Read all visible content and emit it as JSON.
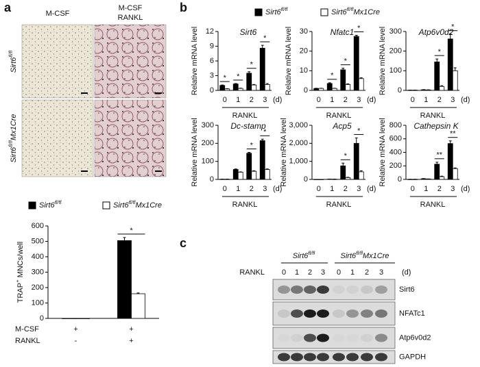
{
  "panel_labels": [
    "a",
    "b",
    "c"
  ],
  "micrographs": {
    "columns": [
      [
        "M-CSF"
      ],
      [
        "M-CSF",
        "RANKL"
      ]
    ],
    "rows": [
      "Sirt6fl/fl",
      "Sirt6fl/flMx1Cre"
    ]
  },
  "chart_data": [
    {
      "type": "bar",
      "y_label": "TRAP+ MNCs/well",
      "categories": [
        null,
        null
      ],
      "conditions": [
        {
          "name": "M-CSF",
          "values": [
            "+",
            "+"
          ]
        },
        {
          "name": "RANKL",
          "values": [
            "-",
            "+"
          ]
        }
      ],
      "series": [
        {
          "name": "Sirt6fl/fl",
          "color": "#000000",
          "values": [
            0,
            505
          ],
          "errors": [
            0,
            20
          ]
        },
        {
          "name": "Sirt6fl/flMx1Cre",
          "color": "#ffffff",
          "values": [
            0,
            160
          ],
          "errors": [
            0,
            5
          ]
        }
      ],
      "ylim": [
        0,
        600
      ],
      "yticks": [
        0,
        100,
        200,
        300,
        400,
        500,
        600
      ],
      "annotations": [
        {
          "text": "*"
        }
      ]
    },
    {
      "type": "bar",
      "title": "Sirt6",
      "y_label": "Relative mRNA level",
      "x_label": "RANKL",
      "x_unit": "(d)",
      "categories": [
        "0",
        "1",
        "2",
        "3"
      ],
      "series": [
        {
          "name": "Sirt6fl/fl",
          "color": "#000000",
          "values": [
            1,
            1.3,
            3.5,
            8.6
          ],
          "errors": [
            0.1,
            0.1,
            0.3,
            0.6
          ]
        },
        {
          "name": "Sirt6fl/flMx1Cre",
          "color": "#ffffff",
          "values": [
            0.3,
            0.4,
            1.1,
            1.2
          ],
          "errors": [
            0.05,
            0.05,
            0.1,
            0.2
          ]
        }
      ],
      "ylim": [
        0,
        12
      ],
      "yticks": [
        0,
        3,
        6,
        9,
        12
      ],
      "annotations": [
        {
          "category": "0",
          "text": "*"
        },
        {
          "category": "1",
          "text": "*"
        },
        {
          "category": "2",
          "text": "*"
        },
        {
          "category": "3",
          "text": "*"
        }
      ]
    },
    {
      "type": "bar",
      "title": "Nfatc1",
      "y_label": "Relative mRNA level",
      "x_label": "RANKL",
      "x_unit": "(d)",
      "categories": [
        "0",
        "1",
        "2",
        "3"
      ],
      "series": [
        {
          "name": "Sirt6fl/fl",
          "color": "#000000",
          "values": [
            1,
            3.5,
            10.5,
            27.5
          ],
          "errors": [
            0.1,
            0.4,
            0.8,
            0.6
          ]
        },
        {
          "name": "Sirt6fl/flMx1Cre",
          "color": "#ffffff",
          "values": [
            1,
            1,
            3,
            6
          ],
          "errors": [
            0.1,
            0.1,
            0.3,
            0.4
          ]
        }
      ],
      "ylim": [
        0,
        30
      ],
      "yticks": [
        0,
        10,
        20,
        30
      ],
      "annotations": [
        {
          "category": "1",
          "text": "*"
        },
        {
          "category": "2",
          "text": "*"
        },
        {
          "category": "3",
          "text": "*"
        }
      ]
    },
    {
      "type": "bar",
      "title": "Atp6v0d2",
      "y_label": "Relative mRNA level",
      "x_label": "RANKL",
      "x_unit": "(d)",
      "categories": [
        "0",
        "1",
        "2",
        "3"
      ],
      "series": [
        {
          "name": "Sirt6fl/fl",
          "color": "#000000",
          "values": [
            1,
            3,
            145,
            262
          ],
          "errors": [
            0.5,
            1,
            15,
            25
          ]
        },
        {
          "name": "Sirt6fl/flMx1Cre",
          "color": "#ffffff",
          "values": [
            1,
            2,
            20,
            100
          ],
          "errors": [
            0.5,
            1,
            4,
            15
          ]
        }
      ],
      "ylim": [
        0,
        300
      ],
      "yticks": [
        0,
        100,
        200,
        300
      ],
      "annotations": [
        {
          "category": "2",
          "text": "*"
        },
        {
          "category": "3",
          "text": "*"
        }
      ]
    },
    {
      "type": "bar",
      "title": "Dc-stamp",
      "y_label": "Relative mRNA level",
      "x_label": "RANKL",
      "x_unit": "(d)",
      "categories": [
        "0",
        "1",
        "2",
        "3"
      ],
      "series": [
        {
          "name": "Sirt6fl/fl",
          "color": "#000000",
          "values": [
            1,
            55,
            145,
            215
          ],
          "errors": [
            0.5,
            3,
            5,
            8
          ]
        },
        {
          "name": "Sirt6fl/flMx1Cre",
          "color": "#ffffff",
          "values": [
            1,
            40,
            45,
            55
          ],
          "errors": [
            0.5,
            2,
            3,
            3
          ]
        }
      ],
      "ylim": [
        0,
        300
      ],
      "yticks": [
        0,
        100,
        200,
        300
      ],
      "annotations": [
        {
          "category": "2",
          "text": "*"
        },
        {
          "category": "3",
          "text": "*"
        }
      ]
    },
    {
      "type": "bar",
      "title": "Acp5",
      "y_label": "Relative mRNA level",
      "x_label": "RANKL",
      "x_unit": "(d)",
      "categories": [
        "0",
        "1",
        "2",
        "3"
      ],
      "series": [
        {
          "name": "Sirt6fl/fl",
          "color": "#000000",
          "values": [
            1,
            15,
            750,
            2000
          ],
          "errors": [
            1,
            5,
            150,
            300
          ]
        },
        {
          "name": "Sirt6fl/flMx1Cre",
          "color": "#ffffff",
          "values": [
            1,
            10,
            100,
            420
          ],
          "errors": [
            1,
            3,
            20,
            60
          ]
        }
      ],
      "ylim": [
        0,
        3000
      ],
      "yticks": [
        0,
        {
          "value": 1000,
          "label": "1,000"
        },
        {
          "value": 2000,
          "label": "2,000"
        },
        {
          "value": 3000,
          "label": "3,000"
        }
      ],
      "annotations": [
        {
          "category": "2",
          "text": "*"
        },
        {
          "category": "3",
          "text": "*"
        }
      ]
    },
    {
      "type": "bar",
      "title": "Cathepsin K",
      "y_label": "Relative mRNA level",
      "x_label": "RANKL",
      "x_unit": "(d)",
      "categories": [
        "0",
        "1",
        "2",
        "3"
      ],
      "series": [
        {
          "name": "Sirt6fl/fl",
          "color": "#000000",
          "values": [
            1,
            10,
            225,
            530
          ],
          "errors": [
            1,
            3,
            30,
            40
          ]
        },
        {
          "name": "Sirt6fl/flMx1Cre",
          "color": "#ffffff",
          "values": [
            1,
            5,
            40,
            160
          ],
          "errors": [
            1,
            2,
            8,
            10
          ]
        }
      ],
      "ylim": [
        0,
        800
      ],
      "yticks": [
        0,
        200,
        400,
        600,
        800
      ],
      "annotations": [
        {
          "category": "2",
          "text": "**"
        },
        {
          "category": "3",
          "text": "**"
        }
      ]
    }
  ],
  "blot": {
    "groups": [
      "Sirt6fl/fl",
      "Sirt6fl/flMx1Cre"
    ],
    "treatment": "RANKL",
    "lanes": [
      "0",
      "1",
      "2",
      "3",
      "0",
      "1",
      "2",
      "3"
    ],
    "unit": "(d)",
    "proteins": [
      "Sirt6",
      "NFATc1",
      "Atp6v0d2",
      "GAPDH"
    ]
  }
}
